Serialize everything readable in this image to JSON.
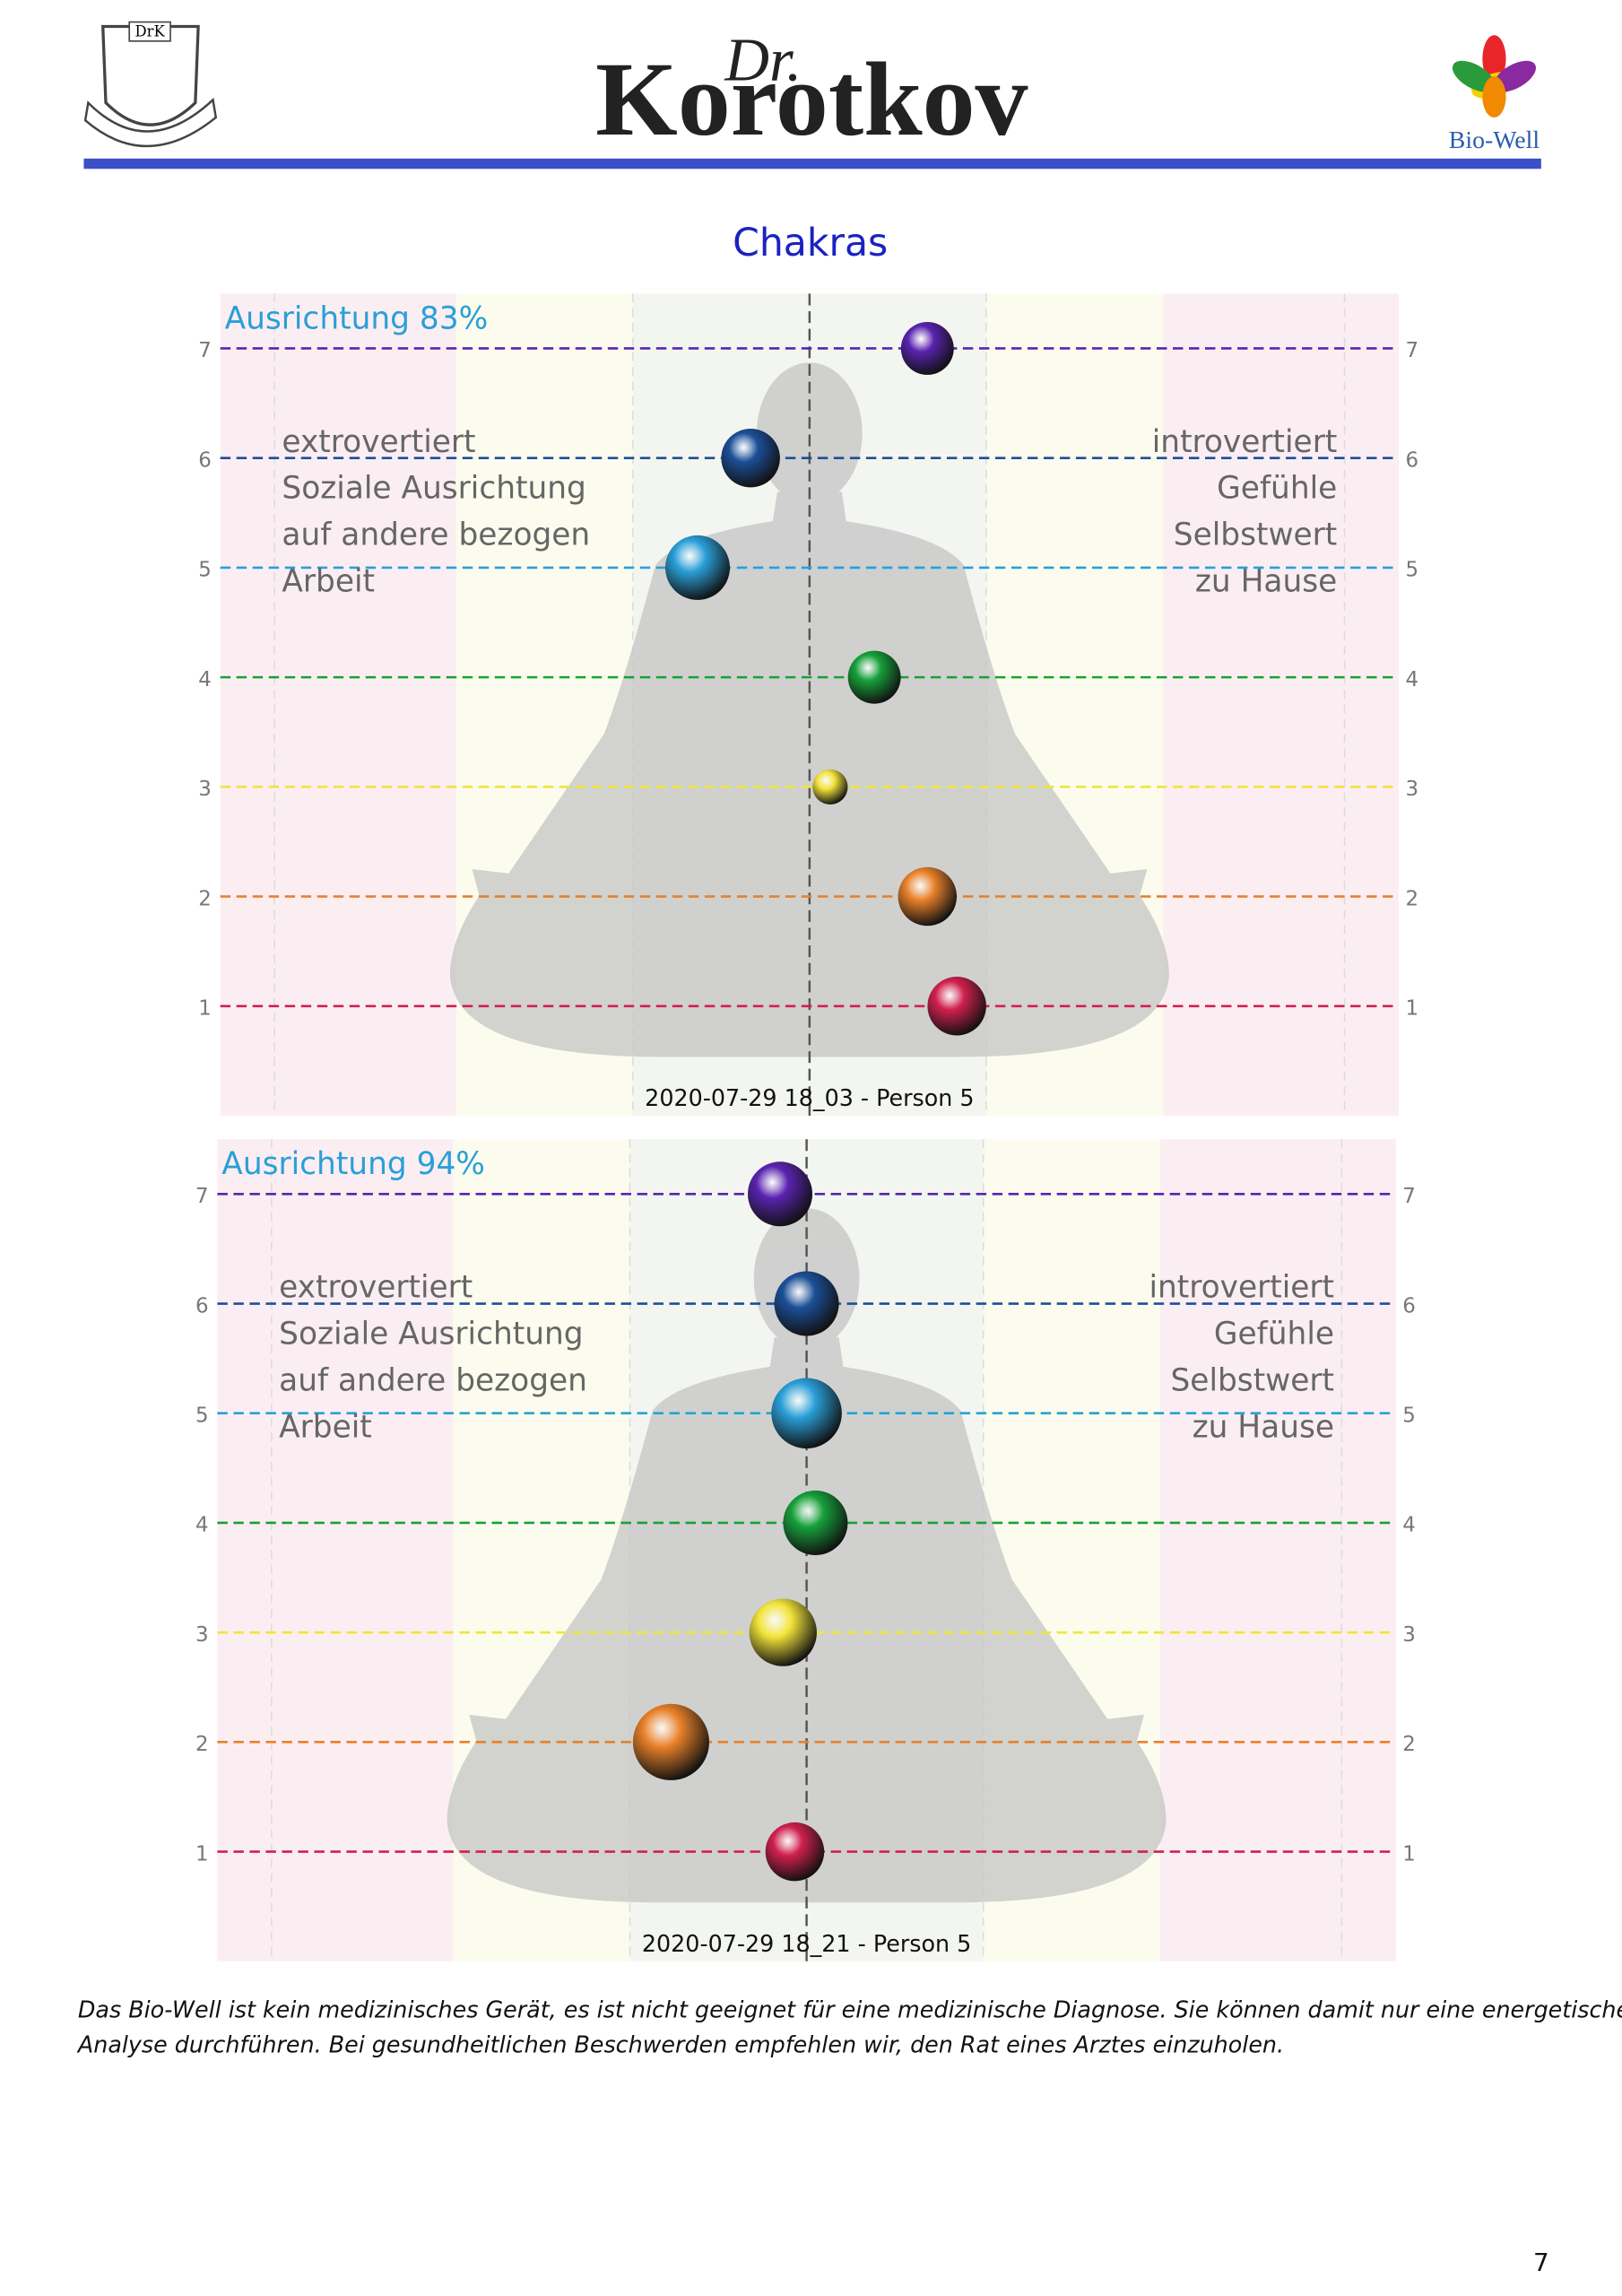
{
  "header": {
    "crest_label": "DrK",
    "logo_prefix": "Dr.",
    "logo_name": "Korotkov",
    "right_logo": "Bio-Well"
  },
  "title": "Chakras",
  "chart_data": [
    {
      "type": "scatter",
      "title": "Ausrichtung 83%",
      "left_text": [
        "extrovertiert",
        "Soziale Ausrichtung",
        "auf andere bezogen",
        "Arbeit"
      ],
      "right_text": [
        "introvertiert",
        "Gefühle",
        "Selbstwert",
        "zu Hause"
      ],
      "caption": "2020-07-29 18_03 - Person 5",
      "x": [
        0.2,
        -0.1,
        -0.19,
        0.11,
        0.035,
        0.2,
        0.25
      ],
      "y": [
        7,
        6,
        5,
        4,
        3,
        2,
        1
      ],
      "sizes": [
        18,
        20,
        22,
        18,
        12,
        20,
        20
      ],
      "colors": [
        "#5a23b0",
        "#1c4f98",
        "#2a9fd8",
        "#17a03a",
        "#f2e43a",
        "#e8812a",
        "#d0204e"
      ],
      "xlim": [
        -1,
        1
      ],
      "ylim": [
        0,
        7.5
      ],
      "yticks": [
        1,
        2,
        3,
        4,
        5,
        6,
        7
      ]
    },
    {
      "type": "scatter",
      "title": "Ausrichtung 94%",
      "left_text": [
        "extrovertiert",
        "Soziale Ausrichtung",
        "auf andere bezogen",
        "Arbeit"
      ],
      "right_text": [
        "introvertiert",
        "Gefühle",
        "Selbstwert",
        "zu Hause"
      ],
      "caption": "2020-07-29 18_21 - Person 5",
      "x": [
        -0.045,
        0,
        0,
        0.015,
        -0.04,
        -0.23,
        -0.02
      ],
      "y": [
        7,
        6,
        5,
        4,
        3,
        2,
        1
      ],
      "sizes": [
        22,
        22,
        24,
        22,
        23,
        26,
        20
      ],
      "colors": [
        "#5a23b0",
        "#1c4f98",
        "#2a9fd8",
        "#17a03a",
        "#f2e43a",
        "#e8812a",
        "#d0204e"
      ],
      "xlim": [
        -1,
        1
      ],
      "ylim": [
        0,
        7.5
      ],
      "yticks": [
        1,
        2,
        3,
        4,
        5,
        6,
        7
      ]
    }
  ],
  "footer": {
    "disclaimer": [
      "Das Bio-Well ist kein medizinisches Gerät, es ist nicht geeignet für eine medizinische Diagnose. Sie können damit nur eine energetische",
      "Analyse durchführen. Bei gesundheitlichen Beschwerden empfehlen wir, den Rat eines Arztes einzuholen."
    ],
    "page": 7
  }
}
